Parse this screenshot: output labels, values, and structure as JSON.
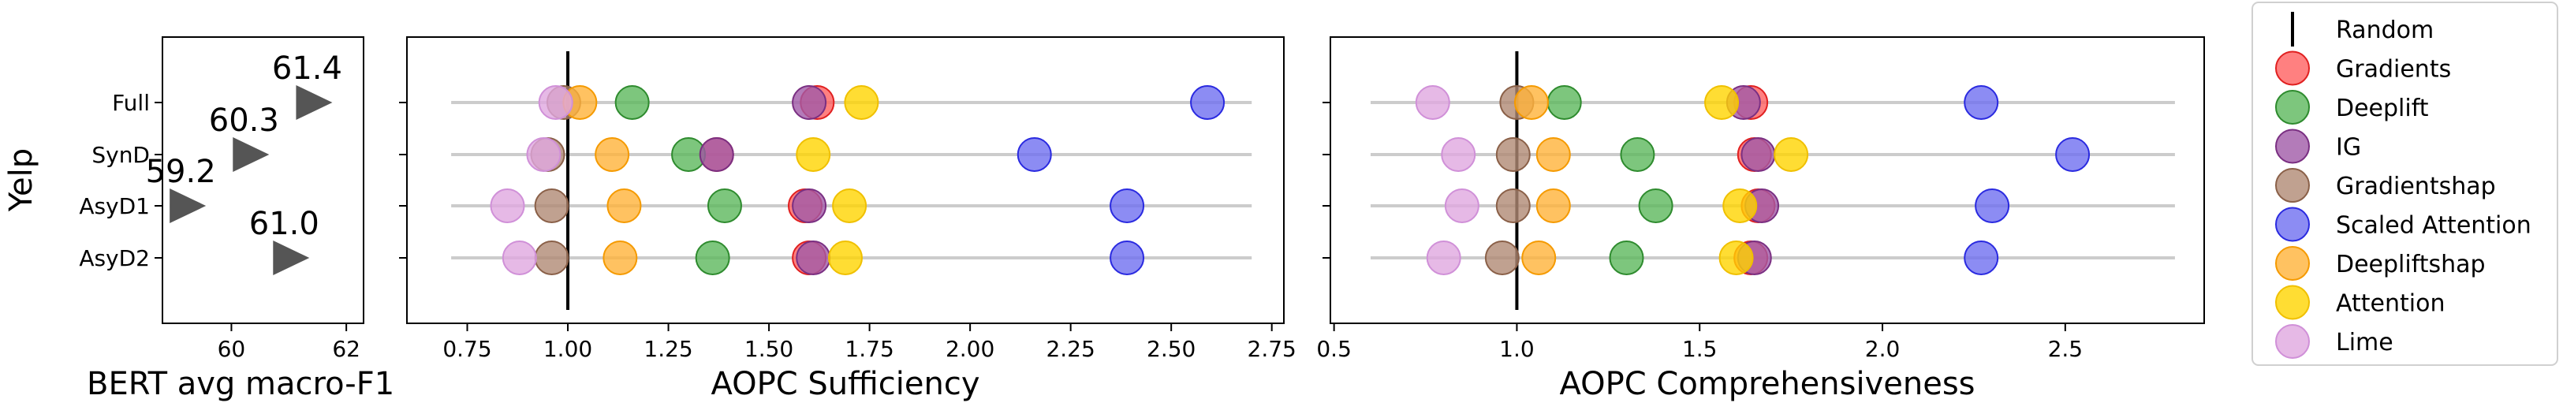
{
  "chart_data": [
    {
      "type": "scatter",
      "panel": "bert-f1",
      "ylabel": "Yelp",
      "xlabel": "BERT avg macro-F1",
      "categories": [
        "Full",
        "SynD",
        "AsyD1",
        "AsyD2"
      ],
      "xlim": [
        58.8,
        62.3
      ],
      "xticks": [
        60,
        62
      ],
      "values": [
        61.4,
        60.3,
        59.2,
        61.0
      ],
      "value_labels": [
        "61.4",
        "60.3",
        "59.2",
        "61.0"
      ],
      "marker": "triangle-right",
      "color": "#555555"
    },
    {
      "type": "scatter",
      "panel": "sufficiency",
      "xlabel": "AOPC Sufficiency",
      "categories": [
        "Full",
        "SynD",
        "AsyD1",
        "AsyD2"
      ],
      "xlim": [
        0.6,
        2.78
      ],
      "xticks": [
        "0.75",
        "1.00",
        "1.25",
        "1.50",
        "1.75",
        "2.00",
        "2.25",
        "2.50",
        "2.75"
      ],
      "reference_line": 1.0,
      "row_line_range": [
        0.71,
        2.7
      ],
      "series": [
        {
          "name": "Gradients",
          "values": [
            1.62,
            1.37,
            1.59,
            1.6
          ]
        },
        {
          "name": "Deeplift",
          "values": [
            1.16,
            1.3,
            1.39,
            1.36
          ]
        },
        {
          "name": "IG",
          "values": [
            1.6,
            1.37,
            1.6,
            1.61
          ]
        },
        {
          "name": "Gradientshap",
          "values": [
            0.99,
            0.95,
            0.96,
            0.96
          ]
        },
        {
          "name": "Scaled Attention",
          "values": [
            2.59,
            2.16,
            2.39,
            2.39
          ]
        },
        {
          "name": "Deepliftshap",
          "values": [
            1.03,
            1.11,
            1.14,
            1.13
          ]
        },
        {
          "name": "Attention",
          "values": [
            1.73,
            1.61,
            1.7,
            1.69
          ]
        },
        {
          "name": "Lime",
          "values": [
            0.97,
            0.94,
            0.85,
            0.88
          ]
        }
      ]
    },
    {
      "type": "scatter",
      "panel": "comprehensiveness",
      "xlabel": "AOPC Comprehensiveness",
      "categories": [
        "Full",
        "SynD",
        "AsyD1",
        "AsyD2"
      ],
      "xlim": [
        0.49,
        2.88
      ],
      "xticks": [
        "0.5",
        "1.0",
        "1.5",
        "2.0",
        "2.5"
      ],
      "reference_line": 1.0,
      "row_line_range": [
        0.6,
        2.8
      ],
      "series": [
        {
          "name": "Gradients",
          "values": [
            1.64,
            1.65,
            1.66,
            1.64
          ]
        },
        {
          "name": "Deeplift",
          "values": [
            1.13,
            1.33,
            1.38,
            1.3
          ]
        },
        {
          "name": "IG",
          "values": [
            1.62,
            1.66,
            1.67,
            1.65
          ]
        },
        {
          "name": "Gradientshap",
          "values": [
            1.0,
            0.99,
            0.99,
            0.96
          ]
        },
        {
          "name": "Scaled Attention",
          "values": [
            2.27,
            2.52,
            2.3,
            2.27
          ]
        },
        {
          "name": "Deepliftshap",
          "values": [
            1.04,
            1.1,
            1.1,
            1.06
          ]
        },
        {
          "name": "Attention",
          "values": [
            1.56,
            1.75,
            1.61,
            1.6
          ]
        },
        {
          "name": "Lime",
          "values": [
            0.77,
            0.84,
            0.85,
            0.8
          ]
        }
      ]
    }
  ],
  "legend": {
    "placement": "right",
    "items": [
      {
        "name": "Random",
        "marker": "line",
        "color": "#000000"
      },
      {
        "name": "Gradients",
        "marker": "circle",
        "color": "#ff6060",
        "edge": "#e02020"
      },
      {
        "name": "Deeplift",
        "marker": "circle",
        "color": "#5cb85c",
        "edge": "#2e8b2e"
      },
      {
        "name": "IG",
        "marker": "circle",
        "color": "#a05aa8",
        "edge": "#7a2f82"
      },
      {
        "name": "Gradientshap",
        "marker": "circle",
        "color": "#b08a74",
        "edge": "#8a6048"
      },
      {
        "name": "Scaled Attention",
        "marker": "circle",
        "color": "#6f6ff0",
        "edge": "#2a2ae0"
      },
      {
        "name": "Deepliftshap",
        "marker": "circle",
        "color": "#ffb33a",
        "edge": "#f59a00"
      },
      {
        "name": "Attention",
        "marker": "circle",
        "color": "#ffd500",
        "edge": "#f0c000"
      },
      {
        "name": "Lime",
        "marker": "circle",
        "color": "#e0a8e0",
        "edge": "#d090d8"
      }
    ]
  }
}
